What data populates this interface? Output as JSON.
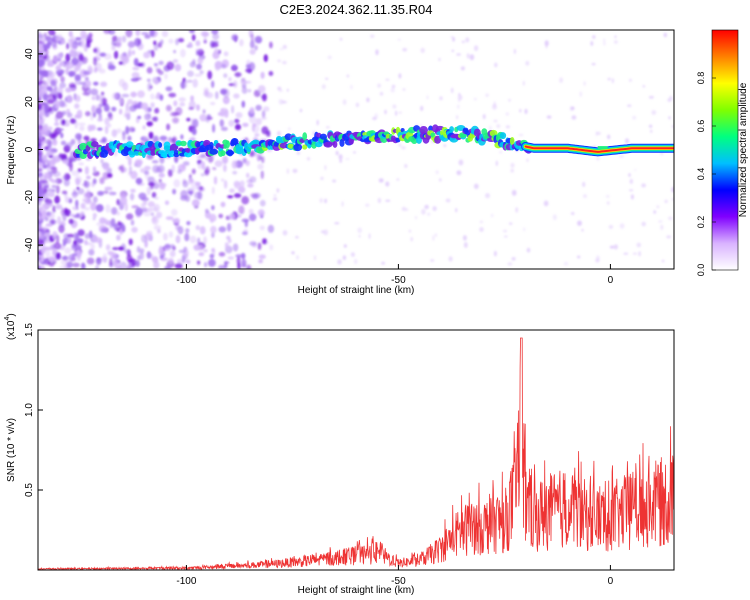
{
  "title": "C2E3.2024.362.11.35.R04",
  "chart_data": [
    {
      "type": "heatmap",
      "xlabel": "Height of straight line (km)",
      "ylabel": "Frequency (Hz)",
      "xlim": [
        -135,
        15
      ],
      "ylim": [
        -50,
        50
      ],
      "xticks": [
        -100,
        -50,
        0
      ],
      "yticks": [
        -40,
        -20,
        0,
        20,
        40
      ],
      "colorbar": {
        "label": "Normalized spectral amplitude",
        "range": [
          0,
          1
        ],
        "ticks": [
          "0.0",
          "0.2",
          "0.4",
          "0.6",
          "0.8"
        ],
        "tick_values": [
          0.0,
          0.2,
          0.4,
          0.6,
          0.8
        ],
        "colors": [
          "#ffffff",
          "#d9b3ff",
          "#8000ff",
          "#0000ff",
          "#00bfff",
          "#00ff80",
          "#80ff00",
          "#ffff00",
          "#ff8000",
          "#ff0000"
        ]
      },
      "ridge": {
        "x": [
          -125,
          -115,
          -105,
          -95,
          -85,
          -75,
          -65,
          -55,
          -45,
          -35,
          -28,
          -22,
          -18,
          -10,
          -3,
          5,
          15
        ],
        "y": [
          0,
          0,
          0,
          0.5,
          1.5,
          3,
          4.5,
          6,
          6.5,
          6.5,
          5,
          2,
          0.5,
          0.5,
          -1,
          0.5,
          0.5
        ]
      }
    },
    {
      "type": "line",
      "xlabel": "Height of straight line (km)",
      "ylabel": "SNR (10 * v/v)",
      "yscale_label": "(x10",
      "yscale_exp": "4",
      "yscale_close": ")",
      "xlim": [
        -135,
        15
      ],
      "ylim": [
        0,
        1.5
      ],
      "xticks": [
        -100,
        -50,
        0
      ],
      "yticks": [
        "0.5",
        "1.0",
        "1.5"
      ],
      "ytick_values": [
        0.5,
        1.0,
        1.5
      ],
      "color": "#ee3333",
      "envelope": {
        "x": [
          -135,
          -100,
          -80,
          -70,
          -60,
          -55,
          -50,
          -45,
          -40,
          -37,
          -33,
          -30,
          -27,
          -25,
          -22,
          -21,
          -20,
          -18,
          -15,
          -10,
          -5,
          0,
          5,
          10,
          15
        ],
        "y": [
          0.01,
          0.02,
          0.06,
          0.1,
          0.15,
          0.18,
          0.07,
          0.1,
          0.22,
          0.35,
          0.45,
          0.45,
          0.5,
          0.5,
          0.8,
          1.45,
          0.7,
          0.55,
          0.6,
          0.65,
          0.55,
          0.55,
          0.62,
          0.68,
          0.75
        ]
      }
    }
  ]
}
